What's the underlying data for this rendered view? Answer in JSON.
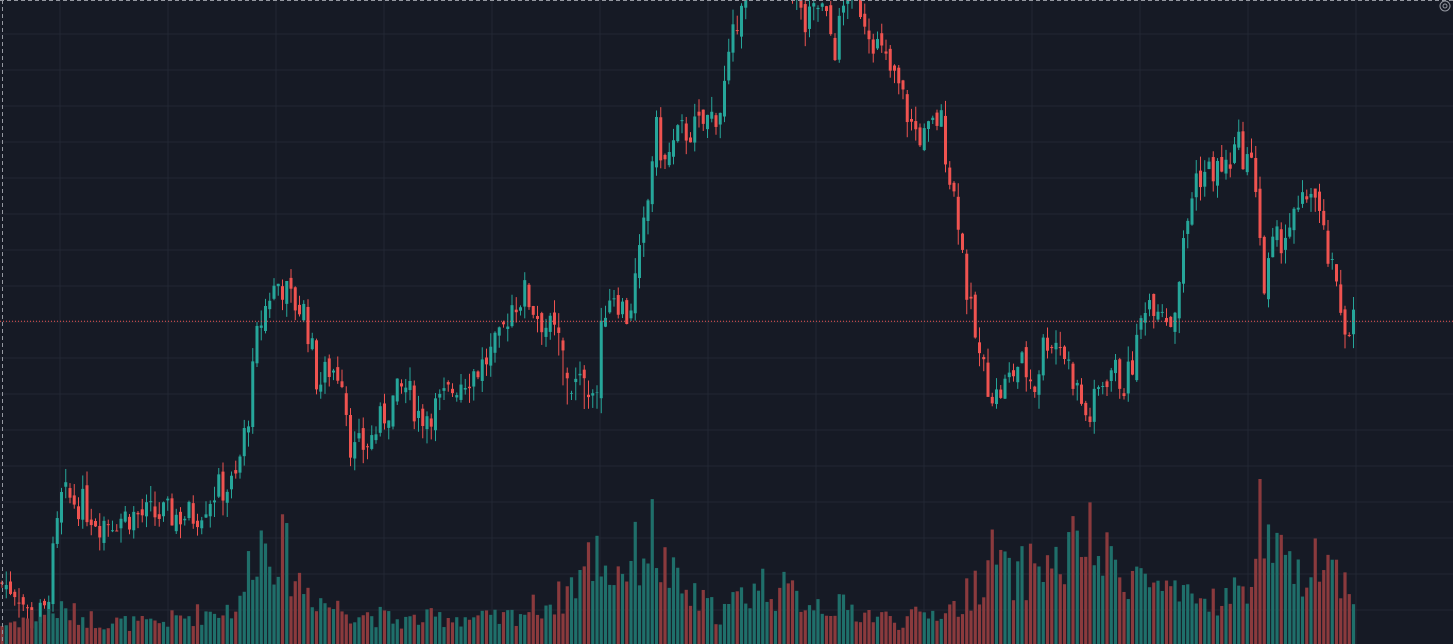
{
  "colors": {
    "background": "#161a25",
    "grid": "#222734",
    "up": "#26a69a",
    "down": "#ef5350",
    "volume_up": "#1f6f6a",
    "volume_down": "#8a3a3d",
    "last_price_line": "#ef5350",
    "crosshair": "#9598a1"
  },
  "icons": {
    "settings": "gear-icon"
  },
  "chart_data": {
    "type": "candlestick",
    "title": "",
    "xlabel": "",
    "ylabel": "",
    "price_range": [
      0,
      100
    ],
    "volume_range": [
      0,
      100
    ],
    "grid": true,
    "last_price": 48.5,
    "close_path": [
      [
        0,
        6
      ],
      [
        18,
        5
      ],
      [
        30,
        0
      ],
      [
        45,
        1
      ],
      [
        62,
        20
      ],
      [
        80,
        19
      ],
      [
        100,
        16
      ],
      [
        130,
        17
      ],
      [
        160,
        17
      ],
      [
        195,
        17
      ],
      [
        215,
        21
      ],
      [
        235,
        22
      ],
      [
        248,
        33
      ],
      [
        258,
        47
      ],
      [
        270,
        53
      ],
      [
        280,
        55
      ],
      [
        290,
        52
      ],
      [
        305,
        50
      ],
      [
        318,
        38
      ],
      [
        330,
        41
      ],
      [
        342,
        40
      ],
      [
        352,
        27
      ],
      [
        370,
        29
      ],
      [
        390,
        35
      ],
      [
        405,
        38
      ],
      [
        420,
        33
      ],
      [
        440,
        35
      ],
      [
        460,
        39
      ],
      [
        480,
        41
      ],
      [
        500,
        45
      ],
      [
        510,
        51
      ],
      [
        525,
        53
      ],
      [
        540,
        49
      ],
      [
        556,
        46
      ],
      [
        564,
        38
      ],
      [
        580,
        38
      ],
      [
        597,
        37
      ],
      [
        603,
        50
      ],
      [
        612,
        54
      ],
      [
        628,
        49
      ],
      [
        640,
        59
      ],
      [
        648,
        68
      ],
      [
        655,
        80
      ],
      [
        665,
        74
      ],
      [
        680,
        79
      ],
      [
        700,
        80
      ],
      [
        720,
        83
      ],
      [
        730,
        91
      ],
      [
        740,
        101
      ],
      [
        752,
        108
      ],
      [
        762,
        118
      ],
      [
        775,
        110
      ],
      [
        790,
        104
      ],
      [
        805,
        96
      ],
      [
        820,
        100
      ],
      [
        835,
        93
      ],
      [
        850,
        104
      ],
      [
        862,
        99
      ],
      [
        875,
        94
      ],
      [
        890,
        89
      ],
      [
        900,
        86
      ],
      [
        912,
        80
      ],
      [
        925,
        78
      ],
      [
        940,
        82
      ],
      [
        950,
        72
      ],
      [
        958,
        66
      ],
      [
        968,
        52
      ],
      [
        980,
        42
      ],
      [
        995,
        36
      ],
      [
        1005,
        38
      ],
      [
        1020,
        42
      ],
      [
        1035,
        38
      ],
      [
        1045,
        46
      ],
      [
        1060,
        45
      ],
      [
        1072,
        40
      ],
      [
        1080,
        36
      ],
      [
        1088,
        32
      ],
      [
        1100,
        38
      ],
      [
        1112,
        41
      ],
      [
        1125,
        38
      ],
      [
        1135,
        43
      ],
      [
        1145,
        52
      ],
      [
        1160,
        52
      ],
      [
        1172,
        48
      ],
      [
        1185,
        62
      ],
      [
        1195,
        72
      ],
      [
        1210,
        73
      ],
      [
        1225,
        73
      ],
      [
        1238,
        77
      ],
      [
        1250,
        74
      ],
      [
        1258,
        70
      ],
      [
        1263,
        52
      ],
      [
        1272,
        60
      ],
      [
        1285,
        63
      ],
      [
        1300,
        66
      ],
      [
        1312,
        71
      ],
      [
        1322,
        63
      ],
      [
        1335,
        54
      ],
      [
        1345,
        48
      ],
      [
        1356,
        49
      ]
    ],
    "volume_path": [
      [
        0,
        12
      ],
      [
        30,
        18
      ],
      [
        60,
        22
      ],
      [
        100,
        15
      ],
      [
        150,
        13
      ],
      [
        200,
        20
      ],
      [
        240,
        25
      ],
      [
        255,
        70
      ],
      [
        268,
        66
      ],
      [
        280,
        65
      ],
      [
        300,
        40
      ],
      [
        330,
        25
      ],
      [
        400,
        15
      ],
      [
        450,
        18
      ],
      [
        500,
        16
      ],
      [
        560,
        30
      ],
      [
        600,
        62
      ],
      [
        610,
        45
      ],
      [
        640,
        60
      ],
      [
        652,
        72
      ],
      [
        660,
        55
      ],
      [
        680,
        35
      ],
      [
        720,
        20
      ],
      [
        760,
        40
      ],
      [
        800,
        30
      ],
      [
        900,
        15
      ],
      [
        960,
        25
      ],
      [
        997,
        60
      ],
      [
        1010,
        40
      ],
      [
        1040,
        55
      ],
      [
        1060,
        50
      ],
      [
        1075,
        65
      ],
      [
        1085,
        72
      ],
      [
        1100,
        55
      ],
      [
        1140,
        45
      ],
      [
        1180,
        28
      ],
      [
        1230,
        30
      ],
      [
        1255,
        45
      ],
      [
        1261,
        100
      ],
      [
        1270,
        60
      ],
      [
        1300,
        40
      ],
      [
        1310,
        65
      ],
      [
        1340,
        45
      ],
      [
        1356,
        35
      ]
    ],
    "price_x_extent": [
      0,
      1356
    ]
  }
}
